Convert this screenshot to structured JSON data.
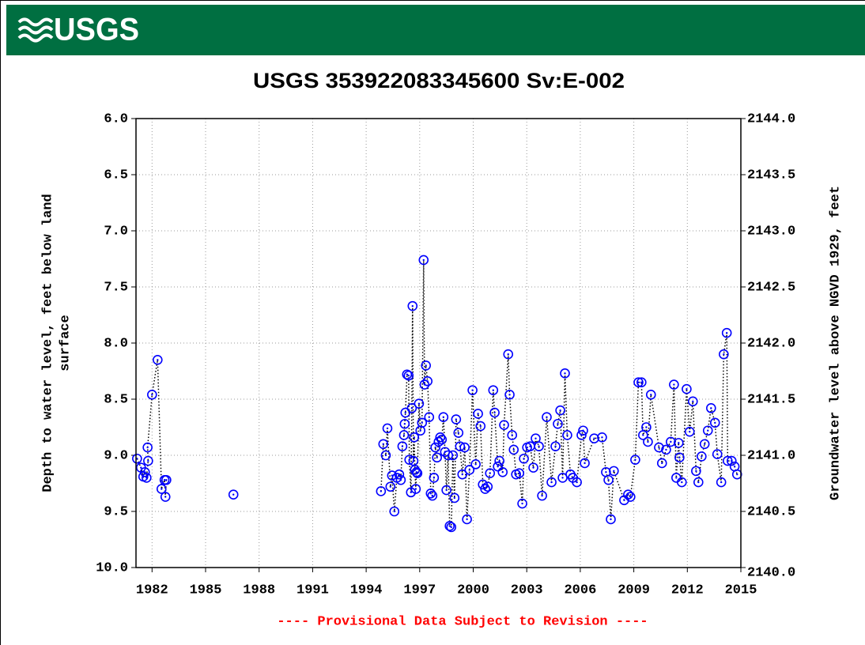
{
  "header": {
    "logo": "USGS"
  },
  "chart_data": {
    "type": "line",
    "title": "USGS 353922083345600 Sv:E-002",
    "ylabel": [
      "Depth to water level, feet below land",
      "surface"
    ],
    "y2label": "Groundwater level above NGVD 1929, feet",
    "footnote": "---- Provisional Data Subject to Revision ----",
    "color": "#0000ff",
    "line_color": "#000000",
    "grid": true,
    "xlim": [
      1981.1,
      2015
    ],
    "xticks": [
      1982,
      1985,
      1988,
      1991,
      1994,
      1997,
      2000,
      2003,
      2006,
      2009,
      2012,
      2015
    ],
    "ylim": [
      10,
      6
    ],
    "yticks": [
      {
        "value": 6,
        "label": "6.0"
      },
      {
        "value": 6.5,
        "label": "6.5"
      },
      {
        "value": 7,
        "label": "7.0"
      },
      {
        "value": 7.5,
        "label": "7.5"
      },
      {
        "value": 8,
        "label": "8.0"
      },
      {
        "value": 8.5,
        "label": "8.5"
      },
      {
        "value": 9,
        "label": "9.0"
      },
      {
        "value": 9.5,
        "label": "9.5"
      },
      {
        "value": 10,
        "label": "10.0"
      }
    ],
    "y2lim": [
      2140,
      2144
    ],
    "y2ticks": [
      {
        "value": 2144,
        "label": "2144.0"
      },
      {
        "value": 2143.5,
        "label": "2143.5"
      },
      {
        "value": 2143,
        "label": "2143.0"
      },
      {
        "value": 2142.5,
        "label": "2142.5"
      },
      {
        "value": 2142,
        "label": "2142.0"
      },
      {
        "value": 2141.5,
        "label": "2141.5"
      },
      {
        "value": 2141,
        "label": "2141.0"
      },
      {
        "value": 2140.5,
        "label": "2140.5"
      },
      {
        "value": 2140,
        "label": "2140.0"
      }
    ],
    "x": [
      1981.16,
      1981.38,
      1981.51,
      1981.6,
      1981.69,
      1981.78,
      1981.75,
      1982.0,
      1982.31,
      1982.53,
      1982.7,
      1982.75,
      1982.8,
      null,
      1986.56,
      null,
      1994.83,
      1994.96,
      1995.1,
      1995.19,
      1995.36,
      1995.45,
      1995.58,
      1995.72,
      1995.85,
      1995.94,
      1996.03,
      1996.12,
      1996.16,
      1996.2,
      1996.29,
      1996.38,
      1996.42,
      1996.51,
      1996.56,
      1996.6,
      1996.65,
      1996.69,
      1996.73,
      1996.78,
      1996.82,
      1996.87,
      1996.96,
      1997.04,
      1997.13,
      1997.22,
      1997.27,
      1997.35,
      1997.44,
      1997.53,
      1997.62,
      1997.71,
      1997.8,
      1997.88,
      1997.97,
      1998.06,
      1998.15,
      1998.24,
      1998.33,
      1998.42,
      1998.5,
      1998.59,
      1998.68,
      1998.77,
      1998.86,
      1998.95,
      1999.04,
      1999.17,
      1999.26,
      1999.39,
      1999.52,
      1999.65,
      1999.79,
      1999.96,
      2000.14,
      2000.27,
      2000.41,
      2000.54,
      2000.67,
      2000.81,
      2000.94,
      2001.12,
      2001.2,
      2001.38,
      2001.47,
      2001.65,
      2001.73,
      2001.96,
      2002.04,
      2002.18,
      2002.27,
      2002.4,
      2002.58,
      2002.75,
      2002.84,
      2003.02,
      2003.19,
      2003.37,
      2003.5,
      2003.68,
      2003.86,
      2004.12,
      2004.39,
      2004.61,
      2004.74,
      2004.88,
      2005.01,
      2005.14,
      2005.27,
      2005.45,
      2005.58,
      2005.81,
      2006.07,
      2006.16,
      2006.25,
      2006.78,
      2007.22,
      2007.44,
      2007.58,
      2007.71,
      2007.88,
      2008.46,
      2008.68,
      2008.81,
      2009.08,
      2009.26,
      2009.43,
      2009.52,
      2009.7,
      2009.79,
      2009.96,
      2010.41,
      2010.58,
      2010.81,
      2011.07,
      2011.25,
      2011.38,
      2011.51,
      2011.56,
      2011.69,
      2011.96,
      2012.13,
      2012.31,
      2012.49,
      2012.62,
      2012.8,
      2012.97,
      2013.15,
      2013.33,
      2013.55,
      2013.68,
      2013.9,
      2014.04,
      2014.21,
      2014.26,
      2014.48,
      2014.65,
      2014.79
    ],
    "values": [
      9.03,
      9.11,
      9.19,
      9.15,
      9.2,
      9.05,
      8.93,
      8.46,
      8.15,
      9.3,
      9.22,
      9.37,
      9.22,
      null,
      9.35,
      null,
      9.32,
      8.9,
      9.0,
      8.76,
      9.28,
      9.18,
      9.5,
      9.2,
      9.17,
      9.22,
      8.92,
      8.82,
      8.72,
      8.62,
      8.28,
      8.29,
      9.04,
      9.33,
      8.58,
      7.67,
      9.05,
      8.84,
      9.13,
      9.3,
      9.15,
      9.16,
      8.54,
      8.78,
      8.71,
      7.26,
      8.37,
      8.2,
      8.34,
      8.66,
      9.34,
      9.36,
      9.2,
      8.93,
      9.02,
      8.88,
      8.84,
      8.86,
      8.66,
      8.97,
      9.31,
      9.0,
      9.63,
      9.64,
      9.0,
      9.38,
      8.68,
      8.8,
      8.92,
      9.17,
      8.93,
      9.57,
      9.13,
      8.42,
      9.08,
      8.63,
      8.74,
      9.26,
      9.3,
      9.28,
      9.16,
      8.42,
      8.62,
      9.1,
      9.05,
      9.15,
      8.73,
      8.1,
      8.46,
      8.82,
      8.95,
      9.17,
      9.16,
      9.43,
      9.03,
      8.93,
      8.92,
      9.11,
      8.85,
      8.92,
      9.36,
      8.66,
      9.24,
      8.92,
      8.72,
      8.6,
      9.2,
      8.27,
      8.82,
      9.17,
      9.2,
      9.24,
      8.82,
      8.78,
      9.07,
      8.85,
      8.84,
      9.15,
      9.22,
      9.57,
      9.14,
      9.4,
      9.35,
      9.37,
      9.04,
      8.35,
      8.35,
      8.82,
      8.75,
      8.88,
      8.46,
      8.93,
      9.07,
      8.95,
      8.88,
      8.37,
      9.2,
      8.89,
      9.02,
      9.24,
      8.41,
      8.79,
      8.52,
      9.14,
      9.24,
      9.01,
      8.9,
      8.78,
      8.58,
      8.71,
      8.99,
      9.24,
      8.1,
      7.91,
      9.05,
      9.05,
      9.1,
      9.17
    ]
  }
}
